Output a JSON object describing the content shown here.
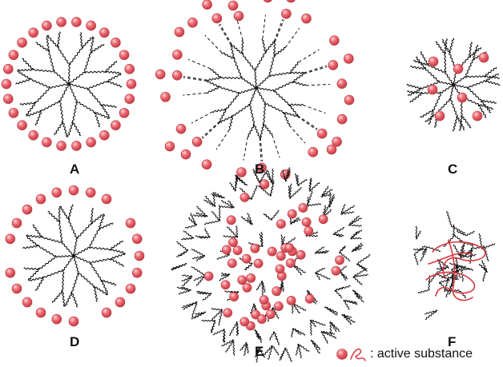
{
  "panels": [
    {
      "id": "A",
      "label": "A",
      "type": "dendrimer-surface"
    },
    {
      "id": "B",
      "label": "B",
      "type": "dendrimer-surface-release"
    },
    {
      "id": "C",
      "label": "C",
      "type": "dendrimer-encapsulated"
    },
    {
      "id": "D",
      "label": "D",
      "type": "dendrimer-surface-partial"
    },
    {
      "id": "E",
      "label": "E",
      "type": "hyperbranched-encapsulated"
    },
    {
      "id": "F",
      "label": "F",
      "type": "hyperbranched-entangled"
    }
  ],
  "legend": {
    "text": ": active substance",
    "sphere_icon": "red-sphere-icon",
    "strand_icon": "red-strand-icon"
  },
  "colors": {
    "sphere_fill": "#e8505b",
    "sphere_light": "#ffd6d9",
    "sphere_stroke": "#b7383f",
    "branch": "#111111",
    "drug_strand": "#d9383f"
  }
}
